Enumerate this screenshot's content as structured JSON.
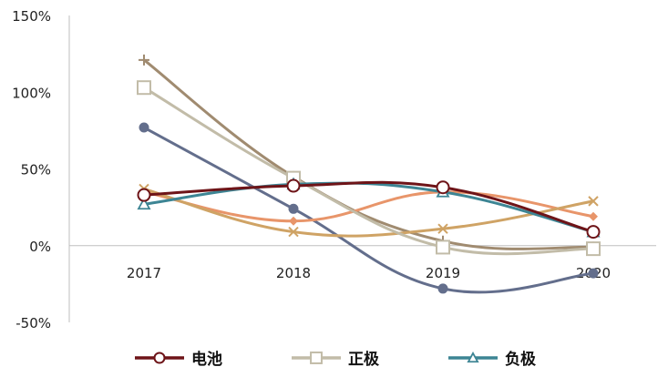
{
  "chart_data": {
    "type": "line",
    "title": "",
    "xlabel": "",
    "ylabel": "",
    "categories": [
      "2017",
      "2018",
      "2019",
      "2020"
    ],
    "ylim": [
      -50,
      150
    ],
    "y_ticks": [
      -50,
      0,
      50,
      100,
      150
    ],
    "y_tick_labels": [
      "-50%",
      "0%",
      "50%",
      "100%",
      "150%"
    ],
    "grid": false,
    "legend_position": "bottom",
    "series": [
      {
        "name": "电池",
        "color": "#6e1418",
        "marker": "circle-open",
        "values": [
          33,
          39,
          38,
          9
        ],
        "in_legend": true
      },
      {
        "name": "正极",
        "color": "#c2bca8",
        "marker": "square-open",
        "values": [
          103,
          44,
          -1,
          -2
        ],
        "in_legend": true
      },
      {
        "name": "负极",
        "color": "#3d8594",
        "marker": "triangle-open",
        "values": [
          27,
          40,
          35,
          9
        ],
        "in_legend": true
      },
      {
        "name": "",
        "color": "#a08b70",
        "marker": "plus",
        "values": [
          121,
          45,
          3,
          -1
        ],
        "in_legend": false
      },
      {
        "name": "",
        "color": "#636e8c",
        "marker": "dot",
        "values": [
          77,
          24,
          -28,
          -18
        ],
        "in_legend": false
      },
      {
        "name": "",
        "color": "#e8956a",
        "marker": "diamond",
        "values": [
          35,
          16,
          35,
          19
        ],
        "in_legend": false
      },
      {
        "name": "",
        "color": "#cfa365",
        "marker": "cross",
        "values": [
          37,
          9,
          11,
          29
        ],
        "in_legend": false
      }
    ]
  }
}
